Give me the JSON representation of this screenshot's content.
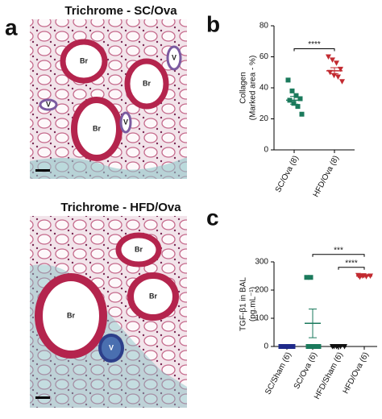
{
  "panels": [
    {
      "letter": "a",
      "images": [
        {
          "title": "Trichrome - SC/Ova",
          "labels": [
            "Br",
            "Br",
            "Br",
            "V",
            "V",
            "V"
          ]
        },
        {
          "title": "Trichrome - HFD/Ova",
          "labels": [
            "Br",
            "Br",
            "Br",
            "V"
          ]
        }
      ]
    },
    {
      "letter": "b"
    },
    {
      "letter": "c"
    }
  ],
  "chart_data": [
    {
      "type": "dot",
      "ylabel": [
        "Collagen",
        "(Marked area - %)"
      ],
      "ylim": [
        0,
        80
      ],
      "yticks": [
        0,
        20,
        40,
        60,
        80
      ],
      "series": [
        {
          "name": "SC/Ova (8)",
          "color": "#1b7a5c",
          "marker": "square",
          "values": [
            45,
            38,
            35,
            33,
            32,
            30,
            28,
            23
          ],
          "mean": 32,
          "sem": 2.5
        },
        {
          "name": "HFD/Ova (8)",
          "color": "#c22a30",
          "marker": "triangle-down",
          "values": [
            60,
            58,
            56,
            52,
            50,
            48,
            47,
            44
          ],
          "mean": 51,
          "sem": 2
        }
      ],
      "annotations": [
        {
          "text": "****",
          "between": [
            "SC/Ova (8)",
            "HFD/Ova (8)"
          ]
        }
      ]
    },
    {
      "type": "dot",
      "ylabel": [
        "TGF-β1 in BAL",
        "(pg.mL⁻¹)"
      ],
      "ylim": [
        0,
        300
      ],
      "yticks": [
        0,
        100,
        200,
        300
      ],
      "series": [
        {
          "name": "SC/Sham (6)",
          "color": "#1f2a8a",
          "marker": "square",
          "values": [
            0,
            0,
            0,
            0,
            0,
            0
          ],
          "mean": 0,
          "sem": 0
        },
        {
          "name": "SC/Ova (6)",
          "color": "#1b7a5c",
          "marker": "square",
          "values": [
            245,
            245,
            0,
            0,
            0,
            0
          ],
          "mean": 82,
          "sem": 51
        },
        {
          "name": "HFD/Sham (6)",
          "color": "#111111",
          "marker": "triangle-down",
          "values": [
            0,
            0,
            0,
            0,
            0,
            0
          ],
          "mean": 0,
          "sem": 0
        },
        {
          "name": "HFD/Ova (6)",
          "color": "#c22a30",
          "marker": "triangle-down",
          "values": [
            252,
            250,
            248,
            250,
            246,
            251
          ],
          "mean": 250,
          "sem": 1
        }
      ],
      "annotations": [
        {
          "text": "****",
          "between": [
            "HFD/Sham (6)",
            "HFD/Ova (6)"
          ]
        },
        {
          "text": "***",
          "between": [
            "SC/Ova (6)",
            "HFD/Ova (6)"
          ]
        }
      ]
    }
  ]
}
